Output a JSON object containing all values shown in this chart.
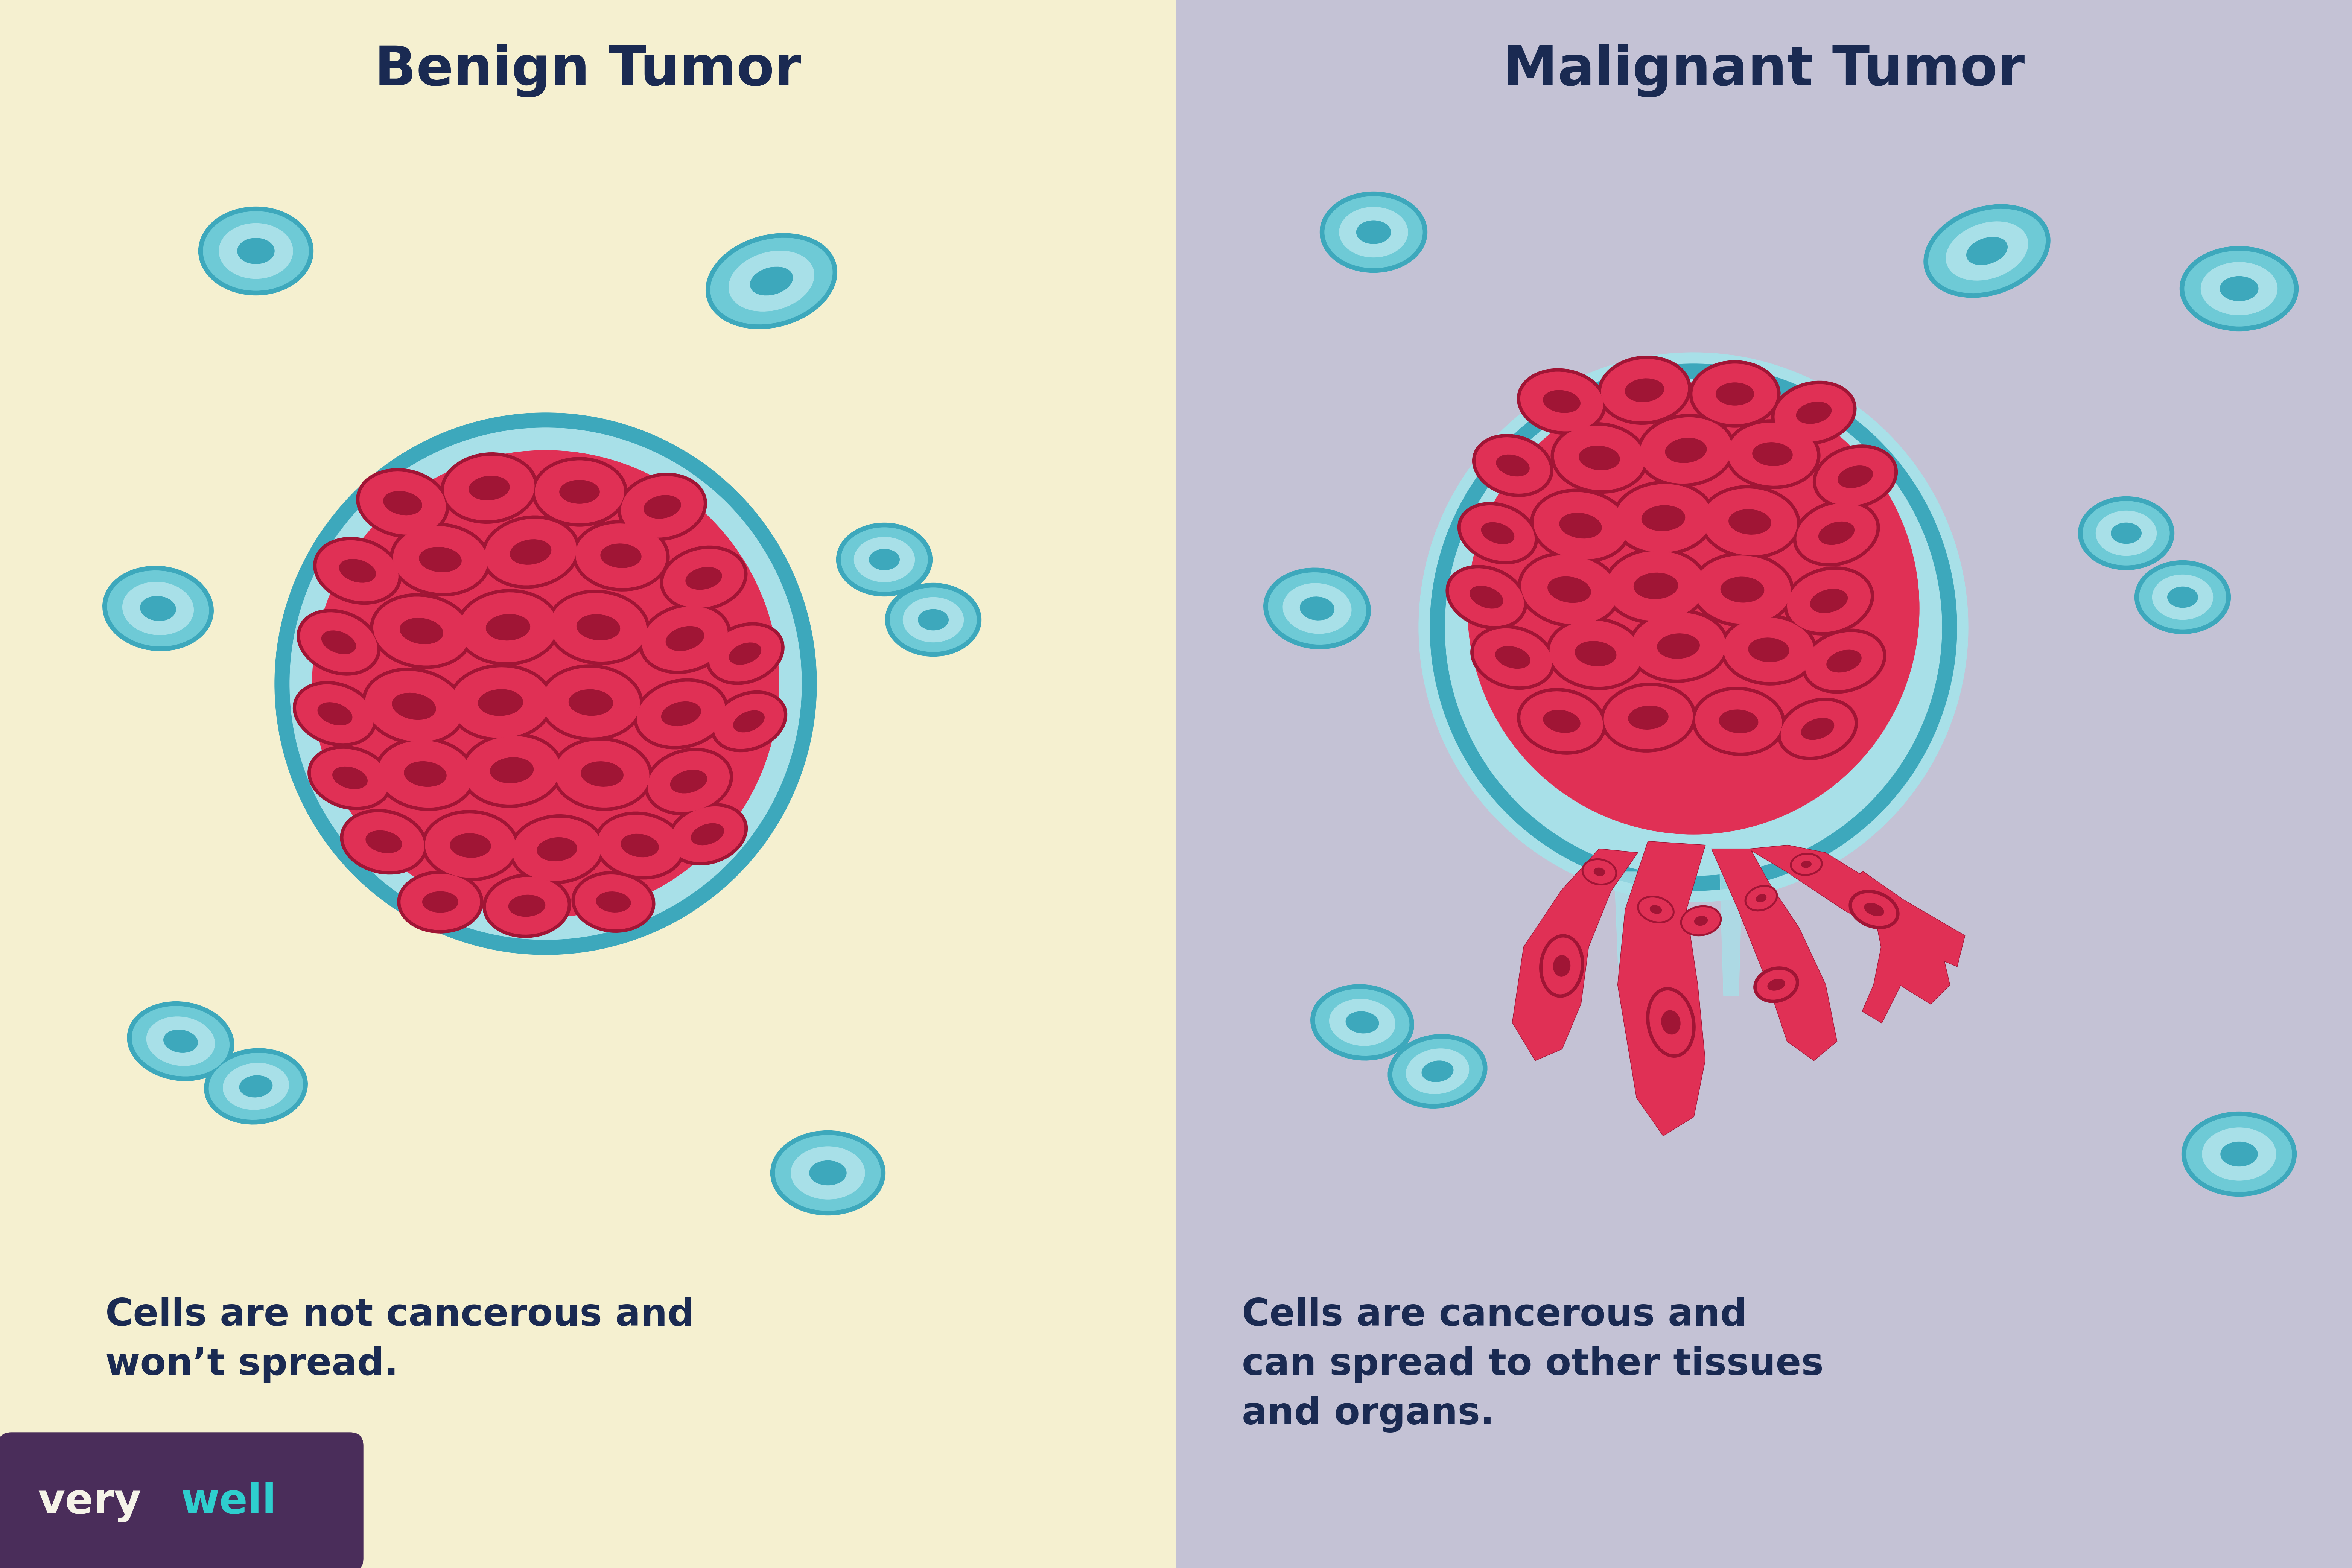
{
  "bg_left": "#f5f0d0",
  "bg_right": "#c4c2d5",
  "title_color": "#1a2a52",
  "text_color": "#1a2a52",
  "teal_dark": "#3da8bc",
  "teal_mid": "#6ecad6",
  "teal_light": "#a8e0e8",
  "red_cell": "#e03055",
  "red_dark": "#a01535",
  "benign_title": "Benign Tumor",
  "malignant_title": "Malignant Tumor",
  "benign_desc": "Cells are not cancerous and\nwon’t spread.",
  "malignant_desc": "Cells are cancerous and\ncan spread to other tissues\nand organs.",
  "logo_bg": "#4a2d5a",
  "logo_very_color": "#f5f3e8",
  "logo_well_color": "#2ecece"
}
